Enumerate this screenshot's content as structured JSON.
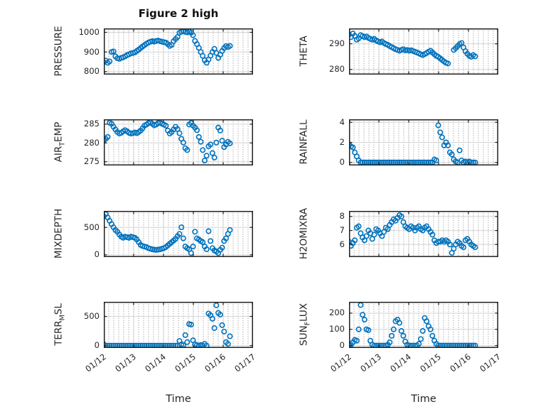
{
  "title": "Figure 2 high",
  "xlabel": "Time",
  "xticklabels": [
    "01/12",
    "01/13",
    "01/14",
    "01/15",
    "01/16",
    "01/17"
  ],
  "xlim": [
    12,
    17
  ],
  "colors": {
    "marker": "#0072BD",
    "axis_box": "#212121",
    "major_grid": "#d4d4d4",
    "tick_text": "#262626"
  },
  "x": [
    12.0,
    12.065,
    12.13,
    12.195,
    12.26,
    12.325,
    12.39,
    12.455,
    12.52,
    12.585,
    12.65,
    12.715,
    12.78,
    12.845,
    12.91,
    12.975,
    13.04,
    13.105,
    13.17,
    13.235,
    13.3,
    13.365,
    13.43,
    13.495,
    13.56,
    13.625,
    13.69,
    13.755,
    13.82,
    13.885,
    13.95,
    14.015,
    14.08,
    14.145,
    14.21,
    14.275,
    14.34,
    14.405,
    14.47,
    14.535,
    14.6,
    14.665,
    14.73,
    14.795,
    14.86,
    14.925,
    14.99,
    15.055,
    15.12,
    15.185,
    15.25,
    15.315,
    15.38,
    15.445,
    15.51,
    15.575,
    15.64,
    15.705,
    15.77,
    15.835,
    15.9,
    15.965,
    16.03,
    16.095,
    16.16,
    16.225
  ],
  "chart_data": [
    {
      "type": "scatter",
      "name": "PRESSURE",
      "ylabel_pre": "PRESSURE",
      "ylabel_sub": "",
      "ylabel_post": "",
      "yticks": [
        800,
        900,
        1000
      ],
      "ylim": [
        785,
        1020
      ],
      "values": [
        848,
        856,
        845,
        852,
        900,
        903,
        878,
        868,
        865,
        870,
        873,
        878,
        884,
        888,
        893,
        895,
        898,
        905,
        912,
        920,
        928,
        935,
        942,
        948,
        952,
        955,
        953,
        956,
        958,
        955,
        952,
        950,
        948,
        940,
        931,
        936,
        955,
        966,
        976,
        998,
        1003,
        1005,
        1002,
        1000,
        1004,
        998,
        985,
        956,
        940,
        921,
        900,
        880,
        858,
        845,
        862,
        881,
        900,
        916,
        895,
        870,
        886,
        905,
        920,
        930,
        925,
        931
      ]
    },
    {
      "type": "scatter",
      "name": "THETA",
      "ylabel_pre": "THETA",
      "ylabel_sub": "",
      "ylabel_post": "",
      "yticks": [
        280,
        290
      ],
      "ylim": [
        278,
        296
      ],
      "values": [
        293.6,
        292.6,
        294.0,
        293.1,
        291.6,
        292.1,
        293.4,
        293.0,
        292.6,
        292.9,
        292.3,
        291.9,
        291.6,
        291.9,
        291.3,
        290.9,
        290.6,
        290.9,
        290.3,
        289.9,
        289.6,
        289.1,
        288.7,
        288.3,
        287.9,
        287.6,
        287.3,
        287.6,
        287.9,
        287.4,
        287.6,
        287.3,
        287.5,
        287.2,
        286.9,
        286.6,
        286.3,
        285.9,
        285.6,
        286.0,
        286.4,
        286.9,
        287.3,
        286.6,
        285.9,
        285.3,
        284.9,
        284.3,
        283.7,
        283.1,
        282.6,
        282.3,
        null,
        null,
        287.6,
        288.3,
        289.1,
        289.9,
        290.3,
        288.6,
        287.1,
        286.1,
        285.3,
        284.9,
        285.6,
        285.1
      ]
    },
    {
      "type": "scatter",
      "name": "AIR_TEMP",
      "ylabel_pre": "AIR",
      "ylabel_sub": "T",
      "ylabel_post": "EMP",
      "yticks": [
        275,
        280,
        285
      ],
      "ylim": [
        274,
        286.3
      ],
      "values": [
        280.6,
        281.1,
        281.6,
        285.4,
        285.1,
        284.3,
        283.6,
        282.9,
        282.5,
        282.7,
        283.1,
        283.4,
        283.1,
        282.7,
        282.5,
        282.6,
        282.8,
        282.6,
        282.9,
        283.3,
        283.9,
        284.6,
        284.9,
        285.3,
        285.5,
        285.1,
        284.7,
        284.9,
        285.3,
        285.4,
        285.1,
        284.9,
        284.6,
        283.3,
        282.5,
        282.9,
        283.6,
        284.3,
        283.7,
        282.6,
        281.1,
        280.1,
        278.6,
        278.1,
        284.9,
        285.3,
        284.6,
        284.1,
        283.4,
        281.6,
        280.3,
        278.1,
        275.3,
        276.6,
        279.1,
        279.6,
        277.3,
        276.1,
        280.1,
        284.1,
        283.3,
        280.6,
        278.9,
        279.6,
        280.3,
        279.9
      ]
    },
    {
      "type": "scatter",
      "name": "RAINFALL",
      "ylabel_pre": "RAINFALL",
      "ylabel_sub": "",
      "ylabel_post": "",
      "yticks": [
        0,
        2,
        4
      ],
      "ylim": [
        -0.3,
        4.3
      ],
      "values": [
        1.8,
        1.6,
        1.5,
        1.0,
        0.6,
        0.2,
        0,
        0,
        0,
        0,
        0,
        0,
        0,
        0,
        0,
        0,
        0,
        0,
        0,
        0,
        0,
        0,
        0,
        0,
        0,
        0,
        0,
        0,
        0,
        0,
        0,
        0,
        0,
        0,
        0,
        0,
        0,
        0,
        0,
        0,
        0,
        0,
        0,
        0,
        0.3,
        0.2,
        3.7,
        3.0,
        2.5,
        1.7,
        2.0,
        1.7,
        1.0,
        0.8,
        0.3,
        0.1,
        0,
        1.2,
        0.2,
        0,
        0.1,
        0,
        0.1,
        0,
        0,
        0
      ]
    },
    {
      "type": "scatter",
      "name": "MIXDEPTH",
      "ylabel_pre": "MIXDEPTH",
      "ylabel_sub": "",
      "ylabel_post": "",
      "yticks": [
        0,
        500
      ],
      "ylim": [
        -40,
        800
      ],
      "values": [
        700,
        742,
        681,
        620,
        561,
        502,
        452,
        421,
        372,
        331,
        312,
        331,
        322,
        311,
        331,
        322,
        312,
        281,
        232,
        181,
        161,
        151,
        142,
        122,
        112,
        101,
        96,
        91,
        96,
        101,
        112,
        122,
        142,
        171,
        201,
        232,
        261,
        291,
        341,
        381,
        502,
        301,
        152,
        122,
        101,
        32,
        152,
        421,
        301,
        281,
        252,
        231,
        152,
        102,
        431,
        252,
        122,
        81,
        61,
        32,
        91,
        132,
        252,
        301,
        381,
        452
      ]
    },
    {
      "type": "scatter",
      "name": "H2OMIXRA",
      "ylabel_pre": "H2OMIXRA",
      "ylabel_sub": "",
      "ylabel_post": "",
      "yticks": [
        6,
        7,
        8
      ],
      "ylim": [
        5.1,
        8.4
      ],
      "values": [
        6.2,
        5.9,
        6.1,
        6.3,
        7.2,
        7.3,
        6.8,
        6.5,
        6.3,
        6.6,
        7.0,
        6.8,
        6.4,
        6.7,
        7.1,
        7.0,
        6.8,
        6.6,
        6.9,
        7.2,
        7.1,
        7.4,
        7.6,
        7.8,
        7.7,
        7.9,
        8.1,
        8.0,
        7.6,
        7.3,
        7.2,
        7.1,
        7.3,
        7.2,
        7.0,
        7.2,
        7.3,
        7.1,
        7.0,
        7.2,
        7.3,
        7.1,
        6.9,
        6.7,
        6.3,
        6.1,
        6.2,
        6.2,
        6.3,
        6.2,
        6.3,
        6.2,
        6.0,
        5.4,
        5.7,
        6.0,
        6.2,
        6.1,
        5.9,
        5.8,
        6.3,
        6.4,
        6.2,
        6.0,
        5.9,
        5.8
      ]
    },
    {
      "type": "scatter",
      "name": "TERR_MSL",
      "ylabel_pre": "TERR",
      "ylabel_sub": "M",
      "ylabel_post": "SL",
      "yticks": [
        0,
        500
      ],
      "ylim": [
        -40,
        750
      ],
      "values": [
        25,
        0,
        0,
        0,
        0,
        0,
        0,
        0,
        0,
        0,
        0,
        0,
        0,
        0,
        0,
        0,
        0,
        0,
        0,
        0,
        0,
        0,
        0,
        0,
        0,
        0,
        0,
        0,
        0,
        0,
        0,
        0,
        0,
        0,
        0,
        0,
        0,
        0,
        0,
        80,
        20,
        10,
        180,
        60,
        370,
        360,
        90,
        20,
        10,
        0,
        10,
        0,
        30,
        0,
        550,
        520,
        460,
        300,
        690,
        560,
        530,
        350,
        240,
        60,
        30,
        160
      ]
    },
    {
      "type": "scatter",
      "name": "SUN_FLUX",
      "ylabel_pre": "SUN",
      "ylabel_sub": "F",
      "ylabel_post": "LUX",
      "yticks": [
        0,
        100,
        200
      ],
      "ylim": [
        -15,
        270
      ],
      "values": [
        0,
        5,
        20,
        35,
        30,
        100,
        250,
        190,
        160,
        100,
        95,
        30,
        5,
        0,
        0,
        0,
        0,
        0,
        0,
        0,
        5,
        20,
        60,
        100,
        150,
        160,
        140,
        90,
        60,
        25,
        5,
        0,
        0,
        0,
        0,
        0,
        10,
        40,
        90,
        170,
        150,
        120,
        100,
        60,
        30,
        10,
        0,
        0,
        0,
        0,
        0,
        0,
        0,
        0,
        0,
        0,
        0,
        0,
        0,
        0,
        0,
        0,
        0,
        0,
        0,
        0
      ]
    }
  ]
}
